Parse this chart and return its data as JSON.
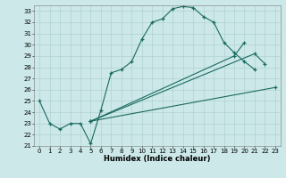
{
  "xlabel": "Humidex (Indice chaleur)",
  "xlim": [
    -0.5,
    23.5
  ],
  "ylim": [
    21,
    33.5
  ],
  "xticks": [
    0,
    1,
    2,
    3,
    4,
    5,
    6,
    7,
    8,
    9,
    10,
    11,
    12,
    13,
    14,
    15,
    16,
    17,
    18,
    19,
    20,
    21,
    22,
    23
  ],
  "yticks": [
    21,
    22,
    23,
    24,
    25,
    26,
    27,
    28,
    29,
    30,
    31,
    32,
    33
  ],
  "bg_color": "#cce8e8",
  "grid_color": "#aacccc",
  "line_color": "#1a6a60",
  "main_x": [
    0,
    1,
    2,
    3,
    4,
    5,
    6,
    7,
    8,
    9,
    10,
    11,
    12,
    13,
    14,
    15,
    16,
    17,
    18,
    19,
    20,
    21
  ],
  "main_y": [
    25.0,
    23.0,
    22.5,
    23.0,
    23.0,
    21.2,
    24.2,
    27.5,
    27.8,
    28.5,
    30.5,
    32.0,
    32.3,
    33.2,
    33.4,
    33.3,
    32.5,
    32.0,
    30.2,
    29.3,
    28.5,
    27.8
  ],
  "line2_x": [
    5,
    23
  ],
  "line2_y": [
    23.2,
    26.2
  ],
  "line3_x": [
    5,
    21,
    22
  ],
  "line3_y": [
    23.2,
    29.2,
    28.3
  ],
  "line4_x": [
    5,
    19,
    20
  ],
  "line4_y": [
    23.2,
    29.0,
    30.2
  ],
  "tick_fontsize": 5,
  "xlabel_fontsize": 6
}
